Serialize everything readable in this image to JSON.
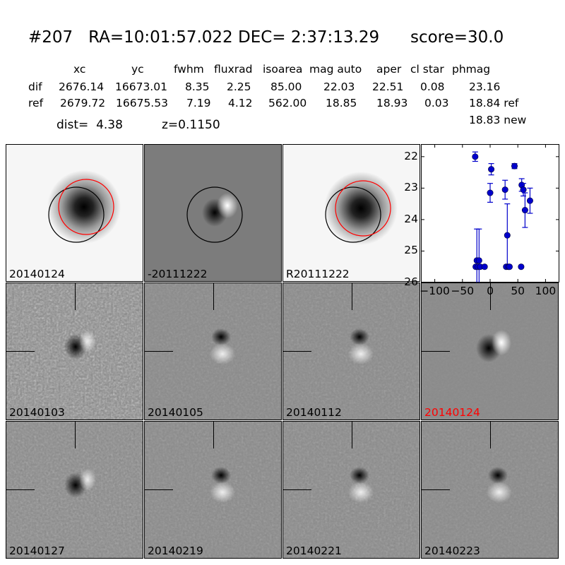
{
  "header": {
    "title": "#207   RA=10:01:57.022 DEC= 2:37:13.29      score=30.0",
    "columns": [
      "xc",
      "yc",
      "fwhm",
      "fluxrad",
      "isoarea",
      "mag auto",
      "aper",
      "cl star",
      "phmag"
    ],
    "rows": [
      {
        "label": "dif",
        "values": [
          "2676.14",
          "16673.01",
          "8.35",
          "2.25",
          "85.00",
          "22.03",
          "22.51",
          "0.08",
          "23.16"
        ]
      },
      {
        "label": "ref",
        "values": [
          "2679.72",
          "16675.53",
          "7.19",
          "4.12",
          "562.00",
          "18.85",
          "18.93",
          "0.03",
          "18.84 ref"
        ]
      }
    ],
    "new_mag": "18.83 new",
    "dist": "dist=  4.38",
    "z": "z=0.1150"
  },
  "panels": {
    "top": [
      {
        "label": "20140124",
        "kind": "science"
      },
      {
        "label": "-20111222",
        "kind": "diff"
      },
      {
        "label": "R20111222",
        "kind": "ref"
      }
    ],
    "grid": [
      {
        "label": "20140103",
        "noise": 0.35,
        "red": false
      },
      {
        "label": "20140105",
        "noise": 0.12,
        "red": false
      },
      {
        "label": "20140112",
        "noise": 0.14,
        "red": false
      },
      {
        "label": "20140124",
        "noise": 0.05,
        "red": true
      },
      {
        "label": "20140127",
        "noise": 0.2,
        "red": false
      },
      {
        "label": "20140219",
        "noise": 0.14,
        "red": false
      },
      {
        "label": "20140221",
        "noise": 0.16,
        "red": false
      },
      {
        "label": "20140223",
        "noise": 0.12,
        "red": false
      }
    ]
  },
  "chart_data": {
    "type": "scatter",
    "title": "",
    "xlabel": "",
    "ylabel": "",
    "xlim": [
      -125,
      125
    ],
    "ylim": [
      26,
      21.6
    ],
    "x_ticks": [
      -100,
      -50,
      0,
      50,
      100
    ],
    "x_tick_labels": [
      "−100",
      "−50",
      "0",
      "50",
      "100"
    ],
    "y_ticks": [
      22,
      23,
      24,
      25,
      26
    ],
    "y_tick_labels": [
      "22",
      "23",
      "24",
      "25",
      "26"
    ],
    "color": "#0000cc",
    "points": [
      {
        "x": -27,
        "y": 22.0,
        "err": 0.15
      },
      {
        "x": -26,
        "y": 25.5,
        "err": 0
      },
      {
        "x": -24,
        "y": 25.3,
        "err": 1.0
      },
      {
        "x": -22,
        "y": 25.5,
        "err": 0
      },
      {
        "x": -20,
        "y": 25.3,
        "err": 1.0
      },
      {
        "x": -18,
        "y": 25.5,
        "err": 0
      },
      {
        "x": -10,
        "y": 25.5,
        "err": 0
      },
      {
        "x": 0,
        "y": 23.15,
        "err": 0.3
      },
      {
        "x": 2,
        "y": 22.4,
        "err": 0.18
      },
      {
        "x": 27,
        "y": 23.05,
        "err": 0.3
      },
      {
        "x": 29,
        "y": 25.5,
        "err": 0
      },
      {
        "x": 31,
        "y": 24.5,
        "err": 1.0
      },
      {
        "x": 33,
        "y": 25.5,
        "err": 0
      },
      {
        "x": 35,
        "y": 25.5,
        "err": 0
      },
      {
        "x": 44,
        "y": 22.3,
        "err": 0.08
      },
      {
        "x": 56,
        "y": 25.5,
        "err": 0
      },
      {
        "x": 57,
        "y": 22.9,
        "err": 0.2
      },
      {
        "x": 60,
        "y": 23.05,
        "err": 0.2
      },
      {
        "x": 63,
        "y": 23.7,
        "err": 0.55
      },
      {
        "x": 72,
        "y": 23.4,
        "err": 0.4
      }
    ]
  }
}
